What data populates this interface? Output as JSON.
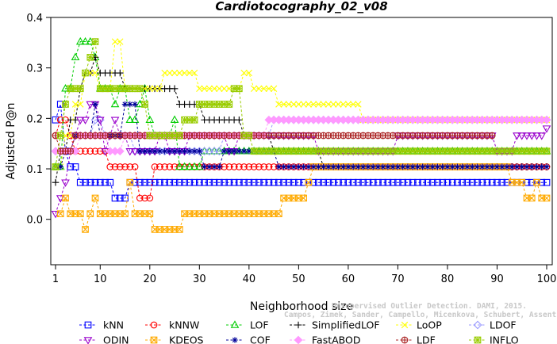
{
  "chart_data": {
    "type": "line",
    "title": "Cardiotocography_02_v08",
    "xlabel": "Neighborhood size",
    "ylabel": "Adjusted P@n",
    "xlim": [
      1,
      100
    ],
    "ylim": [
      -0.09,
      0.4
    ],
    "x_ticks": [
      1,
      10,
      20,
      30,
      40,
      50,
      60,
      70,
      80,
      90,
      100
    ],
    "y_ticks": [
      0.0,
      0.1,
      0.2,
      0.3,
      0.4
    ],
    "x_tick_labels": [
      "1",
      "10",
      "20",
      "30",
      "40",
      "50",
      "60",
      "70",
      "80",
      "90",
      "100"
    ],
    "y_tick_labels": [
      "0.0",
      "0.1",
      "0.2",
      "0.3",
      "0.4"
    ],
    "grid": false,
    "legend_position": "bottom",
    "series": [
      {
        "name": "kNN",
        "color": "#0000ff",
        "marker": "square",
        "points": [
          [
            1,
            0.197
          ],
          [
            2,
            0.228
          ],
          [
            3,
            0.135
          ],
          [
            4,
            0.104
          ],
          [
            5,
            0.104
          ],
          [
            6,
            0.073
          ],
          [
            10,
            0.073
          ],
          [
            13,
            0.042
          ],
          [
            15,
            0.042
          ],
          [
            16,
            0.073
          ],
          [
            100,
            0.073
          ]
        ]
      },
      {
        "name": "kNNW",
        "color": "#ff0000",
        "marker": "circle",
        "points": [
          [
            1,
            0.166
          ],
          [
            2,
            0.197
          ],
          [
            3,
            0.197
          ],
          [
            4,
            0.166
          ],
          [
            5,
            0.135
          ],
          [
            11,
            0.135
          ],
          [
            12,
            0.104
          ],
          [
            17,
            0.104
          ],
          [
            18,
            0.042
          ],
          [
            20,
            0.042
          ],
          [
            21,
            0.104
          ],
          [
            100,
            0.104
          ]
        ]
      },
      {
        "name": "LOF",
        "color": "#00cc00",
        "marker": "triangle",
        "points": [
          [
            1,
            0.104
          ],
          [
            3,
            0.259
          ],
          [
            5,
            0.321
          ],
          [
            6,
            0.352
          ],
          [
            8,
            0.352
          ],
          [
            9,
            0.321
          ],
          [
            10,
            0.259
          ],
          [
            13,
            0.228
          ],
          [
            14,
            0.259
          ],
          [
            16,
            0.197
          ],
          [
            18,
            0.228
          ],
          [
            19,
            0.259
          ],
          [
            20,
            0.197
          ],
          [
            21,
            0.166
          ],
          [
            24,
            0.166
          ],
          [
            25,
            0.197
          ],
          [
            26,
            0.104
          ],
          [
            30,
            0.104
          ],
          [
            31,
            0.135
          ],
          [
            39,
            0.135
          ],
          [
            40,
            0.135
          ],
          [
            100,
            0.135
          ]
        ]
      },
      {
        "name": "SimplifiedLOF",
        "color": "#000000",
        "marker": "plus",
        "points": [
          [
            1,
            0.073
          ],
          [
            2,
            0.135
          ],
          [
            4,
            0.197
          ],
          [
            6,
            0.259
          ],
          [
            7,
            0.29
          ],
          [
            9,
            0.321
          ],
          [
            10,
            0.29
          ],
          [
            14,
            0.29
          ],
          [
            15,
            0.259
          ],
          [
            25,
            0.259
          ],
          [
            26,
            0.228
          ],
          [
            30,
            0.228
          ],
          [
            31,
            0.197
          ],
          [
            38,
            0.197
          ],
          [
            39,
            0.166
          ],
          [
            41,
            0.166
          ],
          [
            45,
            0.135
          ],
          [
            55,
            0.104
          ],
          [
            100,
            0.104
          ]
        ]
      },
      {
        "name": "LoOP",
        "color": "#ffff00",
        "marker": "x",
        "points": [
          [
            1,
            0.104
          ],
          [
            3,
            0.166
          ],
          [
            5,
            0.228
          ],
          [
            7,
            0.29
          ],
          [
            10,
            0.259
          ],
          [
            13,
            0.352
          ],
          [
            15,
            0.259
          ],
          [
            22,
            0.259
          ],
          [
            23,
            0.29
          ],
          [
            29,
            0.29
          ],
          [
            30,
            0.259
          ],
          [
            38,
            0.259
          ],
          [
            39,
            0.29
          ],
          [
            41,
            0.259
          ],
          [
            44,
            0.259
          ],
          [
            46,
            0.228
          ],
          [
            62,
            0.228
          ],
          [
            63,
            0.197
          ],
          [
            100,
            0.197
          ]
        ]
      },
      {
        "name": "LDOF",
        "color": "#9999ff",
        "marker": "diamond",
        "points": [
          [
            1,
            0.135
          ],
          [
            3,
            0.135
          ],
          [
            5,
            0.166
          ],
          [
            7,
            0.166
          ],
          [
            9,
            0.197
          ],
          [
            11,
            0.166
          ],
          [
            15,
            0.166
          ],
          [
            17,
            0.135
          ],
          [
            30,
            0.135
          ],
          [
            35,
            0.166
          ],
          [
            40,
            0.166
          ],
          [
            45,
            0.197
          ],
          [
            100,
            0.197
          ]
        ]
      },
      {
        "name": "ODIN",
        "color": "#9900cc",
        "marker": "triangle-down",
        "points": [
          [
            1,
            0.011
          ],
          [
            2,
            0.042
          ],
          [
            3,
            0.073
          ],
          [
            4,
            0.135
          ],
          [
            5,
            0.166
          ],
          [
            6,
            0.197
          ],
          [
            8,
            0.228
          ],
          [
            9,
            0.228
          ],
          [
            10,
            0.197
          ],
          [
            11,
            0.135
          ],
          [
            12,
            0.166
          ],
          [
            13,
            0.197
          ],
          [
            14,
            0.166
          ],
          [
            16,
            0.135
          ],
          [
            20,
            0.135
          ],
          [
            22,
            0.166
          ],
          [
            24,
            0.135
          ],
          [
            28,
            0.166
          ],
          [
            30,
            0.166
          ],
          [
            34,
            0.166
          ],
          [
            36,
            0.135
          ],
          [
            38,
            0.166
          ],
          [
            40,
            0.166
          ],
          [
            42,
            0.166
          ],
          [
            44,
            0.166
          ],
          [
            46,
            0.166
          ],
          [
            48,
            0.166
          ],
          [
            52,
            0.166
          ],
          [
            54,
            0.135
          ],
          [
            56,
            0.135
          ],
          [
            60,
            0.135
          ],
          [
            62,
            0.135
          ],
          [
            66,
            0.135
          ],
          [
            70,
            0.166
          ],
          [
            74,
            0.166
          ],
          [
            78,
            0.166
          ],
          [
            82,
            0.166
          ],
          [
            86,
            0.166
          ],
          [
            90,
            0.135
          ],
          [
            92,
            0.135
          ],
          [
            94,
            0.166
          ],
          [
            96,
            0.166
          ],
          [
            98,
            0.166
          ],
          [
            100,
            0.18
          ]
        ]
      },
      {
        "name": "KDEOS",
        "color": "#ffaa00",
        "marker": "square-x",
        "points": [
          [
            2,
            0.011
          ],
          [
            3,
            0.042
          ],
          [
            4,
            0.011
          ],
          [
            6,
            0.011
          ],
          [
            7,
            -0.02
          ],
          [
            8,
            0.011
          ],
          [
            9,
            0.042
          ],
          [
            10,
            0.011
          ],
          [
            14,
            0.011
          ],
          [
            16,
            0.073
          ],
          [
            17,
            0.011
          ],
          [
            20,
            0.011
          ],
          [
            21,
            -0.02
          ],
          [
            26,
            -0.02
          ],
          [
            27,
            0.011
          ],
          [
            46,
            0.011
          ],
          [
            47,
            0.042
          ],
          [
            51,
            0.042
          ],
          [
            52,
            0.073
          ],
          [
            53,
            0.104
          ],
          [
            80,
            0.104
          ],
          [
            92,
            0.104
          ],
          [
            93,
            0.073
          ],
          [
            95,
            0.073
          ],
          [
            96,
            0.042
          ],
          [
            98,
            0.073
          ],
          [
            99,
            0.042
          ],
          [
            100,
            0.042
          ]
        ]
      },
      {
        "name": "COF",
        "color": "#000099",
        "marker": "asterisk",
        "points": [
          [
            1,
            0.104
          ],
          [
            3,
            0.135
          ],
          [
            5,
            0.166
          ],
          [
            8,
            0.166
          ],
          [
            9,
            0.228
          ],
          [
            10,
            0.166
          ],
          [
            13,
            0.166
          ],
          [
            15,
            0.228
          ],
          [
            18,
            0.135
          ],
          [
            30,
            0.135
          ],
          [
            31,
            0.104
          ],
          [
            34,
            0.104
          ],
          [
            35,
            0.135
          ],
          [
            42,
            0.135
          ],
          [
            46,
            0.104
          ],
          [
            100,
            0.104
          ]
        ]
      },
      {
        "name": "FastABOD",
        "color": "#ff99ff",
        "marker": "diamond-filled",
        "points": [
          [
            1,
            0.135
          ],
          [
            5,
            0.135
          ],
          [
            6,
            0.166
          ],
          [
            10,
            0.166
          ],
          [
            12,
            0.135
          ],
          [
            15,
            0.166
          ],
          [
            18,
            0.166
          ],
          [
            25,
            0.166
          ],
          [
            32,
            0.166
          ],
          [
            33,
            0.166
          ],
          [
            40,
            0.166
          ],
          [
            44,
            0.197
          ],
          [
            100,
            0.197
          ]
        ]
      },
      {
        "name": "LDF",
        "color": "#aa2222",
        "marker": "circle-plus",
        "points": [
          [
            1,
            0.166
          ],
          [
            2,
            0.135
          ],
          [
            4,
            0.135
          ],
          [
            5,
            0.166
          ],
          [
            12,
            0.166
          ],
          [
            13,
            0.166
          ],
          [
            20,
            0.166
          ],
          [
            25,
            0.166
          ],
          [
            30,
            0.166
          ],
          [
            40,
            0.166
          ],
          [
            60,
            0.166
          ],
          [
            89,
            0.166
          ]
        ]
      },
      {
        "name": "INFLO",
        "color": "#99cc00",
        "marker": "square-star",
        "points": [
          [
            1,
            0.104
          ],
          [
            2,
            0.166
          ],
          [
            3,
            0.228
          ],
          [
            4,
            0.259
          ],
          [
            6,
            0.259
          ],
          [
            7,
            0.29
          ],
          [
            8,
            0.321
          ],
          [
            9,
            0.352
          ],
          [
            10,
            0.259
          ],
          [
            17,
            0.259
          ],
          [
            19,
            0.228
          ],
          [
            20,
            0.166
          ],
          [
            25,
            0.166
          ],
          [
            27,
            0.197
          ],
          [
            30,
            0.228
          ],
          [
            36,
            0.228
          ],
          [
            37,
            0.259
          ],
          [
            38,
            0.259
          ],
          [
            39,
            0.166
          ],
          [
            41,
            0.135
          ],
          [
            100,
            0.135
          ]
        ]
      }
    ],
    "legend_entries": [
      "kNN",
      "kNNW",
      "LOF",
      "SimplifiedLOF",
      "LoOP",
      "LDOF",
      "ODIN",
      "KDEOS",
      "COF",
      "FastABOD",
      "LDF",
      "INFLO"
    ]
  },
  "watermark": {
    "line1": "Unsupervised Outlier Detection. DAMI, 2015.",
    "line2": "Campos, Zimek, Sander, Campello, Micenkova, Schubert, Assent, Houle"
  }
}
